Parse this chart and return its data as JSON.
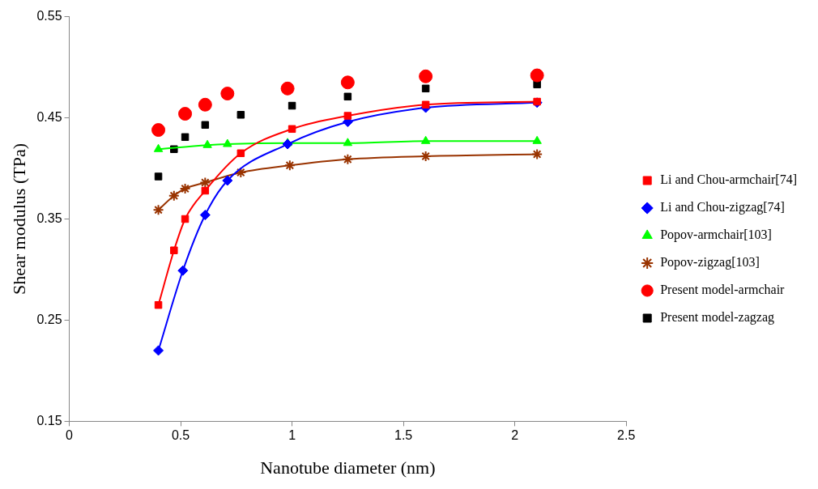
{
  "chart_data": {
    "type": "line",
    "xlabel": "Nanotube diameter (nm)",
    "ylabel": "Shear modulus (TPa)",
    "xlim": [
      0,
      2.5
    ],
    "xticks": [
      0,
      0.5,
      1,
      1.5,
      2,
      2.5
    ],
    "ylim": [
      0.15,
      0.55
    ],
    "yticks": [
      0.15,
      0.25,
      0.35,
      0.45,
      0.55
    ],
    "grid": false,
    "legend": "right",
    "series": [
      {
        "name": "Li and Chou-armchair[74]",
        "marker": "square",
        "color": "#ff0000",
        "x": [
          0.4,
          0.47,
          0.52,
          0.61,
          0.77,
          1.0,
          1.25,
          1.6,
          2.1
        ],
        "values": [
          0.265,
          0.319,
          0.35,
          0.378,
          0.415,
          0.439,
          0.452,
          0.463,
          0.466
        ]
      },
      {
        "name": "Li and Chou-zigzag[74]",
        "marker": "diamond",
        "color": "#0000ff",
        "x": [
          0.4,
          0.51,
          0.61,
          0.71,
          0.98,
          1.25,
          1.6,
          2.1
        ],
        "values": [
          0.22,
          0.299,
          0.354,
          0.388,
          0.424,
          0.446,
          0.46,
          0.465
        ]
      },
      {
        "name": "Popov-armchair[103]",
        "marker": "triangle",
        "color": "#00ff00",
        "x": [
          0.4,
          0.62,
          0.71,
          0.98,
          1.25,
          1.6,
          2.1
        ],
        "values": [
          0.419,
          0.423,
          0.424,
          0.425,
          0.425,
          0.427,
          0.427
        ]
      },
      {
        "name": "Popov-zigzag[103]",
        "marker": "cross",
        "color": "#993300",
        "x": [
          0.4,
          0.47,
          0.52,
          0.61,
          0.77,
          0.99,
          1.25,
          1.6,
          2.1
        ],
        "values": [
          0.359,
          0.373,
          0.38,
          0.386,
          0.396,
          0.403,
          0.409,
          0.412,
          0.414
        ]
      },
      {
        "name": "Present model-armchair",
        "type": "scatter",
        "marker": "circle",
        "color": "#ff0000",
        "x": [
          0.4,
          0.52,
          0.61,
          0.71,
          0.98,
          1.25,
          1.6,
          2.1
        ],
        "values": [
          0.438,
          0.454,
          0.463,
          0.474,
          0.479,
          0.485,
          0.491,
          0.492
        ]
      },
      {
        "name": "Present model-zagzag",
        "type": "scatter",
        "marker": "square",
        "color": "#000000",
        "x": [
          0.4,
          0.47,
          0.52,
          0.61,
          0.77,
          1.0,
          1.25,
          1.6,
          2.1
        ],
        "values": [
          0.392,
          0.419,
          0.431,
          0.443,
          0.453,
          0.462,
          0.471,
          0.479,
          0.483
        ]
      }
    ]
  }
}
